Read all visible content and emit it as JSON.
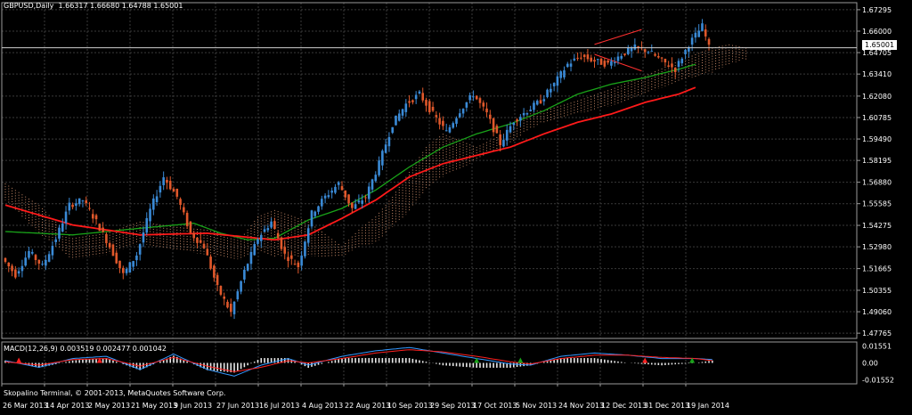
{
  "header": {
    "symbol_info": "GBPUSD,Daily",
    "ohlc": "1.66317 1.66680 1.64788 1.65001"
  },
  "current_price_label": "1.65001",
  "macd_header": {
    "name": "MACD(12,26,9)",
    "values": "0.003519 0.002477 0.001042"
  },
  "copyright": "Skopalino Terminal, © 2001-2013, MetaQuotes Software Corp.",
  "colors": {
    "background": "#000000",
    "grid": "#3a3a3a",
    "bull_candle": "#3a8ad6",
    "bear_candle": "#e0582b",
    "ma_red": "#ff1a1a",
    "ma_green": "#19a319",
    "cloud_dots": "#e8a07a",
    "macd_main": "#3399ff",
    "macd_signal": "#ff2020",
    "macd_hist": "#e8e8e8"
  },
  "chart_data": {
    "type": "candlestick",
    "symbol": "GBPUSD",
    "timeframe": "Daily",
    "price_axis_ticks": [
      "1.67295",
      "1.66000",
      "1.64705",
      "1.63410",
      "1.62080",
      "1.60785",
      "1.59490",
      "1.58195",
      "1.56880",
      "1.55585",
      "1.54275",
      "1.52980",
      "1.51665",
      "1.50355",
      "1.49060",
      "1.47765"
    ],
    "price_ylim": [
      1.4745,
      1.6772
    ],
    "date_axis_ticks": [
      "26 Mar 2013",
      "14 Apr 2013",
      "2 May 2013",
      "21 May 2013",
      "9 Jun 2013",
      "27 Jun 2013",
      "16 Jul 2013",
      "4 Aug 2013",
      "22 Aug 2013",
      "10 Sep 2013",
      "29 Sep 2013",
      "17 Oct 2013",
      "5 Nov 2013",
      "24 Nov 2013",
      "12 Dec 2013",
      "31 Dec 2013",
      "19 Jan 2014"
    ],
    "price_path": [
      [
        0,
        1.523
      ],
      [
        4,
        1.513
      ],
      [
        8,
        1.527
      ],
      [
        12,
        1.518
      ],
      [
        16,
        1.535
      ],
      [
        20,
        1.555
      ],
      [
        24,
        1.558
      ],
      [
        28,
        1.545
      ],
      [
        32,
        1.53
      ],
      [
        36,
        1.513
      ],
      [
        40,
        1.525
      ],
      [
        44,
        1.552
      ],
      [
        48,
        1.572
      ],
      [
        52,
        1.56
      ],
      [
        56,
        1.538
      ],
      [
        60,
        1.53
      ],
      [
        64,
        1.505
      ],
      [
        68,
        1.49
      ],
      [
        72,
        1.515
      ],
      [
        76,
        1.535
      ],
      [
        80,
        1.545
      ],
      [
        84,
        1.525
      ],
      [
        88,
        1.518
      ],
      [
        92,
        1.55
      ],
      [
        96,
        1.56
      ],
      [
        100,
        1.568
      ],
      [
        104,
        1.553
      ],
      [
        108,
        1.56
      ],
      [
        112,
        1.58
      ],
      [
        116,
        1.604
      ],
      [
        120,
        1.616
      ],
      [
        124,
        1.622
      ],
      [
        128,
        1.61
      ],
      [
        132,
        1.599
      ],
      [
        136,
        1.612
      ],
      [
        140,
        1.622
      ],
      [
        144,
        1.61
      ],
      [
        148,
        1.592
      ],
      [
        152,
        1.606
      ],
      [
        156,
        1.612
      ],
      [
        160,
        1.618
      ],
      [
        164,
        1.628
      ],
      [
        168,
        1.64
      ],
      [
        172,
        1.645
      ],
      [
        176,
        1.642
      ],
      [
        180,
        1.64
      ],
      [
        184,
        1.646
      ],
      [
        188,
        1.65
      ],
      [
        192,
        1.648
      ],
      [
        196,
        1.642
      ],
      [
        200,
        1.637
      ],
      [
        204,
        1.652
      ],
      [
        208,
        1.663
      ],
      [
        210,
        1.65
      ]
    ],
    "ma_red": [
      [
        0,
        1.555
      ],
      [
        20,
        1.543
      ],
      [
        40,
        1.537
      ],
      [
        60,
        1.538
      ],
      [
        80,
        1.534
      ],
      [
        90,
        1.537
      ],
      [
        100,
        1.547
      ],
      [
        110,
        1.558
      ],
      [
        120,
        1.572
      ],
      [
        130,
        1.58
      ],
      [
        140,
        1.585
      ],
      [
        150,
        1.59
      ],
      [
        160,
        1.598
      ],
      [
        170,
        1.605
      ],
      [
        180,
        1.61
      ],
      [
        190,
        1.617
      ],
      [
        200,
        1.622
      ],
      [
        205,
        1.626
      ]
    ],
    "ma_green": [
      [
        0,
        1.539
      ],
      [
        20,
        1.537
      ],
      [
        40,
        1.541
      ],
      [
        56,
        1.544
      ],
      [
        64,
        1.538
      ],
      [
        72,
        1.534
      ],
      [
        80,
        1.535
      ],
      [
        90,
        1.546
      ],
      [
        100,
        1.553
      ],
      [
        110,
        1.564
      ],
      [
        120,
        1.578
      ],
      [
        130,
        1.59
      ],
      [
        140,
        1.598
      ],
      [
        150,
        1.604
      ],
      [
        160,
        1.612
      ],
      [
        170,
        1.622
      ],
      [
        180,
        1.628
      ],
      [
        190,
        1.632
      ],
      [
        200,
        1.637
      ],
      [
        205,
        1.64
      ]
    ],
    "cloud_a": [
      [
        0,
        1.568
      ],
      [
        10,
        1.555
      ],
      [
        20,
        1.535
      ],
      [
        30,
        1.538
      ],
      [
        40,
        1.545
      ],
      [
        50,
        1.542
      ],
      [
        60,
        1.54
      ],
      [
        70,
        1.535
      ],
      [
        75,
        1.548
      ],
      [
        80,
        1.552
      ],
      [
        90,
        1.545
      ],
      [
        100,
        1.53
      ],
      [
        105,
        1.54
      ],
      [
        110,
        1.548
      ],
      [
        115,
        1.56
      ],
      [
        120,
        1.575
      ],
      [
        125,
        1.59
      ],
      [
        130,
        1.598
      ],
      [
        140,
        1.59
      ],
      [
        150,
        1.6
      ],
      [
        155,
        1.612
      ],
      [
        160,
        1.612
      ],
      [
        170,
        1.618
      ],
      [
        180,
        1.625
      ],
      [
        190,
        1.633
      ],
      [
        200,
        1.642
      ],
      [
        210,
        1.65
      ],
      [
        215,
        1.652
      ],
      [
        220,
        1.65
      ]
    ],
    "cloud_b": [
      [
        0,
        1.558
      ],
      [
        10,
        1.538
      ],
      [
        20,
        1.522
      ],
      [
        30,
        1.525
      ],
      [
        40,
        1.532
      ],
      [
        50,
        1.528
      ],
      [
        60,
        1.525
      ],
      [
        70,
        1.522
      ],
      [
        75,
        1.528
      ],
      [
        80,
        1.524
      ],
      [
        90,
        1.524
      ],
      [
        100,
        1.524
      ],
      [
        105,
        1.53
      ],
      [
        110,
        1.532
      ],
      [
        115,
        1.542
      ],
      [
        120,
        1.551
      ],
      [
        125,
        1.565
      ],
      [
        130,
        1.572
      ],
      [
        140,
        1.582
      ],
      [
        150,
        1.592
      ],
      [
        155,
        1.6
      ],
      [
        160,
        1.605
      ],
      [
        170,
        1.61
      ],
      [
        180,
        1.615
      ],
      [
        190,
        1.622
      ],
      [
        200,
        1.63
      ],
      [
        210,
        1.635
      ],
      [
        215,
        1.64
      ],
      [
        220,
        1.643
      ]
    ],
    "trend_lines": [
      {
        "from": [
          175,
          1.652
        ],
        "to": [
          189,
          1.661
        ],
        "color": "#ff3030"
      },
      {
        "from": [
          175,
          1.646
        ],
        "to": [
          189,
          1.636
        ],
        "color": "#ff3030"
      }
    ],
    "macd_axis_ticks": [
      "0.01551",
      "0.00",
      "-0.01552"
    ],
    "macd_ylim": [
      -0.019,
      0.019
    ],
    "macd_main": [
      [
        0,
        0.002
      ],
      [
        10,
        -0.004
      ],
      [
        20,
        0.004
      ],
      [
        30,
        0.006
      ],
      [
        40,
        -0.006
      ],
      [
        50,
        0.008
      ],
      [
        60,
        -0.006
      ],
      [
        68,
        -0.012
      ],
      [
        76,
        -0.002
      ],
      [
        84,
        0.004
      ],
      [
        90,
        -0.002
      ],
      [
        100,
        0.006
      ],
      [
        110,
        0.011
      ],
      [
        120,
        0.014
      ],
      [
        130,
        0.009
      ],
      [
        140,
        0.004
      ],
      [
        150,
        -0.001
      ],
      [
        156,
        -0.002
      ],
      [
        165,
        0.006
      ],
      [
        175,
        0.009
      ],
      [
        185,
        0.007
      ],
      [
        195,
        0.004
      ],
      [
        205,
        0.004
      ],
      [
        210,
        0.003
      ]
    ],
    "macd_signal": [
      [
        0,
        0.001
      ],
      [
        10,
        -0.002
      ],
      [
        20,
        0.003
      ],
      [
        30,
        0.004
      ],
      [
        40,
        -0.003
      ],
      [
        50,
        0.005
      ],
      [
        60,
        -0.003
      ],
      [
        68,
        -0.008
      ],
      [
        76,
        -0.004
      ],
      [
        84,
        0.002
      ],
      [
        90,
        0.0
      ],
      [
        100,
        0.004
      ],
      [
        110,
        0.009
      ],
      [
        120,
        0.012
      ],
      [
        130,
        0.01
      ],
      [
        140,
        0.006
      ],
      [
        150,
        0.001
      ],
      [
        156,
        -0.001
      ],
      [
        165,
        0.004
      ],
      [
        175,
        0.007
      ],
      [
        185,
        0.007
      ],
      [
        195,
        0.005
      ],
      [
        205,
        0.004
      ],
      [
        210,
        0.002
      ]
    ]
  }
}
